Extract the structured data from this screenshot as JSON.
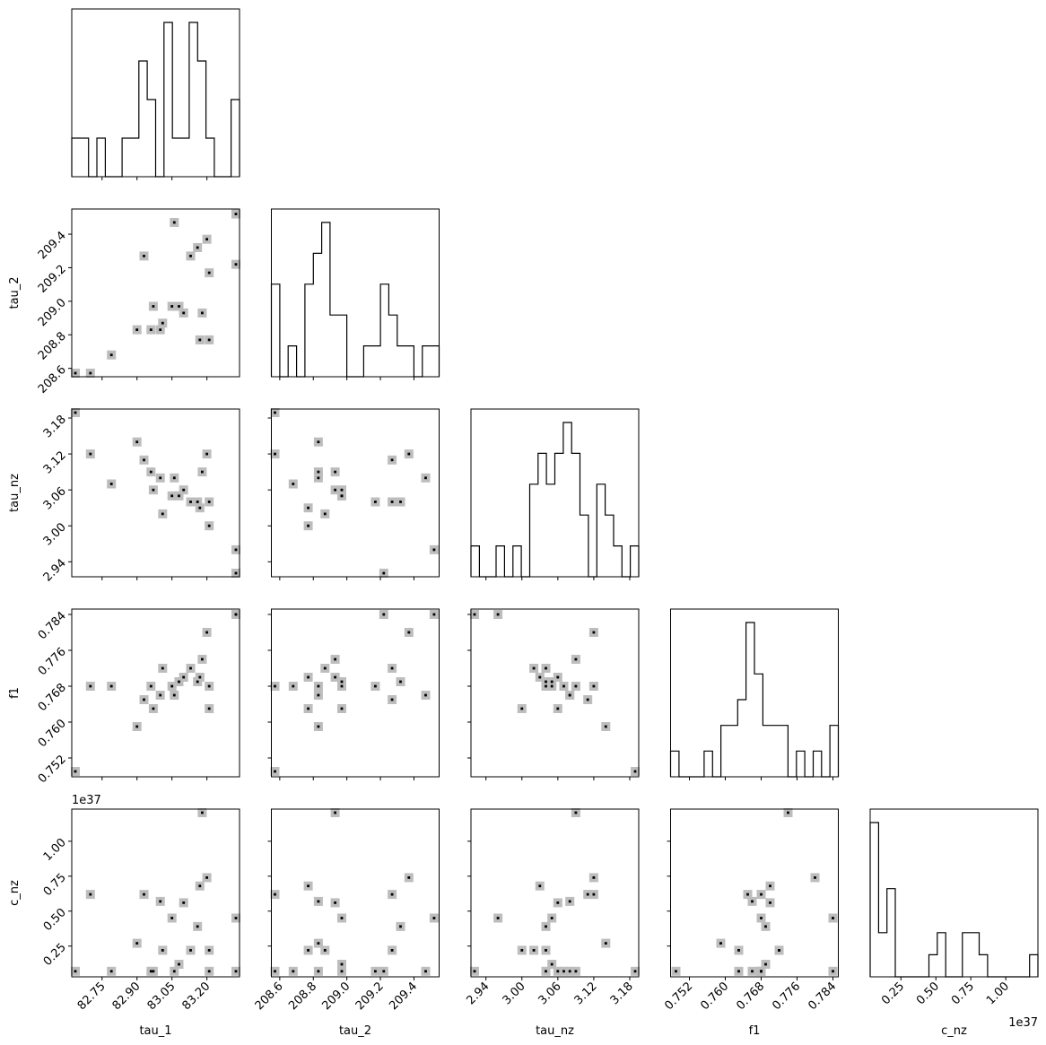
{
  "chart_data": {
    "type": "corner",
    "title": "",
    "params": [
      "tau_1",
      "tau_2",
      "tau_nz",
      "f1",
      "c_nz"
    ],
    "axis_labels": [
      "tau_1",
      "tau_2",
      "tau_nz",
      "f1",
      "c_nz"
    ],
    "ranges": [
      [
        82.62,
        83.34
      ],
      [
        208.55,
        209.55
      ],
      [
        2.915,
        3.195
      ],
      [
        0.7478,
        0.7852
      ],
      [
        0.03,
        1.23
      ]
    ],
    "ticks": [
      [
        82.75,
        82.9,
        83.05,
        83.2
      ],
      [
        208.6,
        208.8,
        209.0,
        209.2,
        209.4
      ],
      [
        2.94,
        3.0,
        3.06,
        3.12,
        3.18
      ],
      [
        0.752,
        0.76,
        0.768,
        0.776,
        0.784
      ],
      [
        0.25,
        0.5,
        0.75,
        1.0
      ]
    ],
    "tick_labels": [
      [
        "82.75",
        "82.90",
        "83.05",
        "83.20"
      ],
      [
        "208.6",
        "208.8",
        "209.0",
        "209.2",
        "209.4"
      ],
      [
        "2.94",
        "3.00",
        "3.06",
        "3.12",
        "3.18"
      ],
      [
        "0.752",
        "0.760",
        "0.768",
        "0.776",
        "0.784"
      ],
      [
        "0.25",
        "0.50",
        "0.75",
        "1.00"
      ]
    ],
    "offset_text": "1e37",
    "histograms": [
      {
        "param": "tau_1",
        "counts": [
          1,
          1,
          0,
          1,
          0,
          0,
          1,
          1,
          3,
          2,
          0,
          4,
          1,
          1,
          4,
          3,
          1,
          0,
          0,
          2
        ]
      },
      {
        "param": "tau_2",
        "counts": [
          3,
          0,
          1,
          0,
          3,
          4,
          5,
          2,
          2,
          0,
          0,
          1,
          1,
          3,
          2,
          1,
          1,
          0,
          1,
          1
        ]
      },
      {
        "param": "tau_nz",
        "counts": [
          1,
          0,
          0,
          1,
          0,
          1,
          0,
          3,
          4,
          3,
          4,
          5,
          4,
          2,
          0,
          3,
          2,
          1,
          0,
          1
        ]
      },
      {
        "param": "f1",
        "counts": [
          1,
          0,
          0,
          0,
          1,
          0,
          2,
          2,
          3,
          6,
          4,
          2,
          2,
          2,
          0,
          1,
          0,
          1,
          0,
          2
        ]
      },
      {
        "param": "c_nz",
        "counts": [
          7,
          2,
          4,
          0,
          0,
          0,
          0,
          1,
          2,
          0,
          0,
          2,
          2,
          1,
          0,
          0,
          0,
          0,
          0,
          1
        ]
      }
    ],
    "samples": [
      [
        82.63,
        208.57,
        3.19,
        0.749,
        0.07
      ],
      [
        82.7,
        208.57,
        3.12,
        0.768,
        0.62
      ],
      [
        82.79,
        208.68,
        3.07,
        0.768,
        0.07
      ],
      [
        82.9,
        208.83,
        3.14,
        0.759,
        0.27
      ],
      [
        82.93,
        209.27,
        3.11,
        0.765,
        0.62
      ],
      [
        82.96,
        208.83,
        3.09,
        0.768,
        0.07
      ],
      [
        82.97,
        208.97,
        3.06,
        0.763,
        0.07
      ],
      [
        83.0,
        208.83,
        3.08,
        0.766,
        0.57
      ],
      [
        83.01,
        208.87,
        3.02,
        0.772,
        0.22
      ],
      [
        83.05,
        208.97,
        3.05,
        0.768,
        0.45
      ],
      [
        83.06,
        209.47,
        3.08,
        0.766,
        0.07
      ],
      [
        83.08,
        208.97,
        3.05,
        0.769,
        0.12
      ],
      [
        83.1,
        208.93,
        3.06,
        0.77,
        0.56
      ],
      [
        83.13,
        209.27,
        3.04,
        0.772,
        0.22
      ],
      [
        83.16,
        209.32,
        3.04,
        0.769,
        0.39
      ],
      [
        83.17,
        208.77,
        3.03,
        0.77,
        0.68
      ],
      [
        83.18,
        208.93,
        3.09,
        0.774,
        1.22
      ],
      [
        83.2,
        209.37,
        3.12,
        0.78,
        0.74
      ],
      [
        83.21,
        209.17,
        3.04,
        0.768,
        0.07
      ],
      [
        83.21,
        208.77,
        3.0,
        0.763,
        0.22
      ],
      [
        83.33,
        209.52,
        2.96,
        0.784,
        0.45
      ],
      [
        83.33,
        209.22,
        2.92,
        0.784,
        0.07
      ]
    ]
  }
}
